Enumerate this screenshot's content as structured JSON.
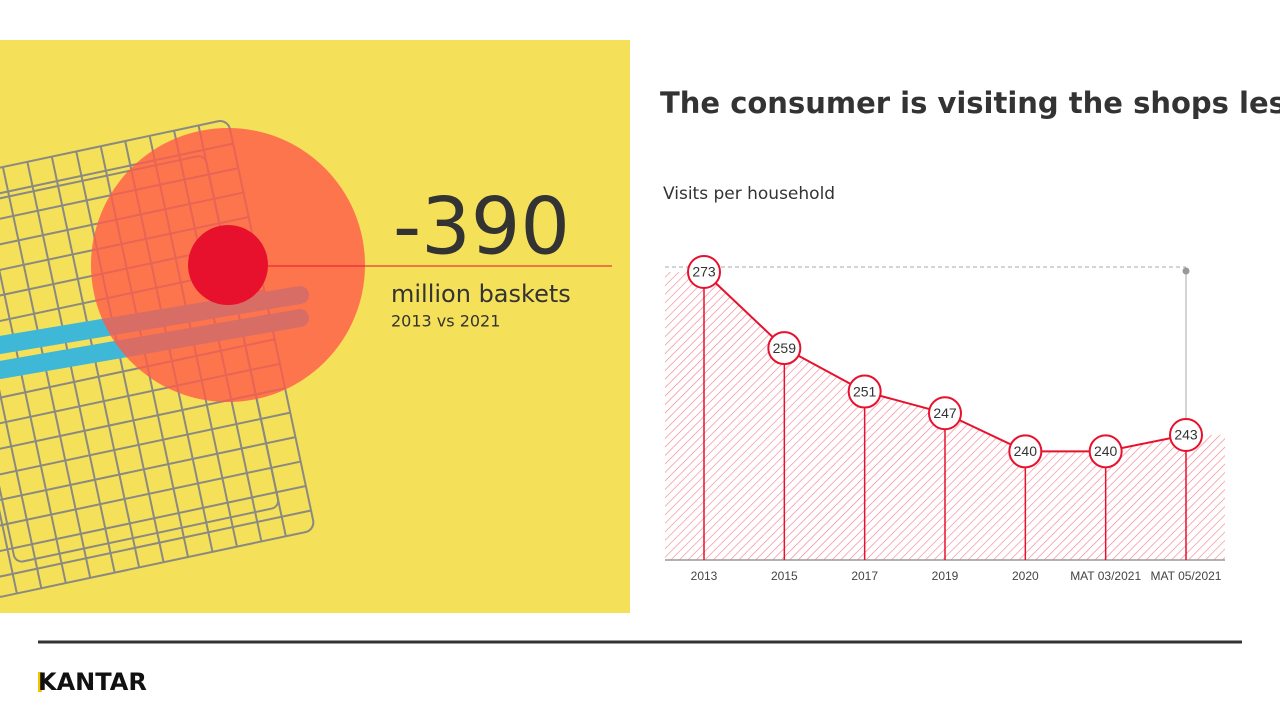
{
  "slide": {
    "headline": "-390",
    "headline_unit": "million baskets",
    "headline_period": "2013 vs 2021",
    "logo": "KANTAR"
  },
  "chart_data": {
    "type": "area",
    "title": "The consumer is visiting the shops less",
    "subtitle": "Visits per household",
    "categories": [
      "2013",
      "2015",
      "2017",
      "2019",
      "2020",
      "MAT 03/2021",
      "MAT 05/2021"
    ],
    "values": [
      273,
      259,
      251,
      247,
      240,
      240,
      243
    ],
    "color": "#e8112d",
    "ylim": [
      220,
      273
    ]
  }
}
